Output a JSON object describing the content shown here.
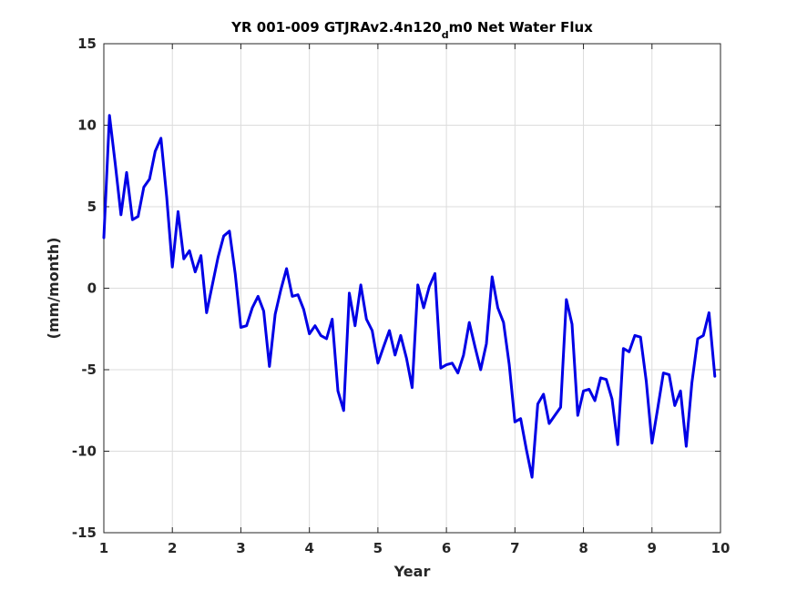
{
  "chart_data": {
    "type": "line",
    "title": {
      "main": "YR 001-009 GTJRAv2.4n120",
      "subscript": "d",
      "rest": "m0 Net Water Flux"
    },
    "xlabel": "Year",
    "ylabel": "(mm/month)",
    "xlim": [
      1,
      10
    ],
    "ylim": [
      -15,
      15
    ],
    "xticks": [
      1,
      2,
      3,
      4,
      5,
      6,
      7,
      8,
      9,
      10
    ],
    "yticks": [
      -15,
      -10,
      -5,
      0,
      5,
      10,
      15
    ],
    "grid": true,
    "line_color": "#0000e6",
    "x": [
      1.0,
      1.083,
      1.167,
      1.25,
      1.333,
      1.417,
      1.5,
      1.583,
      1.667,
      1.75,
      1.833,
      1.917,
      2.0,
      2.083,
      2.167,
      2.25,
      2.333,
      2.417,
      2.5,
      2.583,
      2.667,
      2.75,
      2.833,
      2.917,
      3.0,
      3.083,
      3.167,
      3.25,
      3.333,
      3.417,
      3.5,
      3.583,
      3.667,
      3.75,
      3.833,
      3.917,
      4.0,
      4.083,
      4.167,
      4.25,
      4.333,
      4.417,
      4.5,
      4.583,
      4.667,
      4.75,
      4.833,
      4.917,
      5.0,
      5.083,
      5.167,
      5.25,
      5.333,
      5.417,
      5.5,
      5.583,
      5.667,
      5.75,
      5.833,
      5.917,
      6.0,
      6.083,
      6.167,
      6.25,
      6.333,
      6.417,
      6.5,
      6.583,
      6.667,
      6.75,
      6.833,
      6.917,
      7.0,
      7.083,
      7.167,
      7.25,
      7.333,
      7.417,
      7.5,
      7.583,
      7.667,
      7.75,
      7.833,
      7.917,
      8.0,
      8.083,
      8.167,
      8.25,
      8.333,
      8.417,
      8.5,
      8.583,
      8.667,
      8.75,
      8.833,
      8.917,
      9.0,
      9.083,
      9.167,
      9.25,
      9.333,
      9.417,
      9.5,
      9.583,
      9.667,
      9.75,
      9.833,
      9.917
    ],
    "y": [
      3.1,
      10.6,
      7.6,
      4.5,
      7.1,
      4.2,
      4.4,
      6.2,
      6.7,
      8.4,
      9.2,
      5.6,
      1.3,
      4.7,
      1.8,
      2.3,
      1.0,
      2.0,
      -1.5,
      0.2,
      1.9,
      3.2,
      3.5,
      0.9,
      -2.4,
      -2.3,
      -1.2,
      -0.5,
      -1.4,
      -4.8,
      -1.6,
      -0.1,
      1.2,
      -0.5,
      -0.4,
      -1.3,
      -2.8,
      -2.3,
      -2.9,
      -3.1,
      -1.9,
      -6.3,
      -7.5,
      -0.3,
      -2.3,
      0.2,
      -1.9,
      -2.6,
      -4.6,
      -3.6,
      -2.6,
      -4.1,
      -2.9,
      -4.3,
      -6.1,
      0.2,
      -1.2,
      0.1,
      0.9,
      -4.9,
      -4.7,
      -4.6,
      -5.2,
      -4.1,
      -2.1,
      -3.6,
      -5.0,
      -3.4,
      0.7,
      -1.2,
      -2.1,
      -4.7,
      -8.2,
      -8.0,
      -9.9,
      -11.6,
      -7.1,
      -6.5,
      -8.3,
      -7.8,
      -7.3,
      -0.7,
      -2.2,
      -7.8,
      -6.3,
      -6.2,
      -6.9,
      -5.5,
      -5.6,
      -6.8,
      -9.6,
      -3.7,
      -3.9,
      -2.9,
      -3.0,
      -5.7,
      -9.5,
      -7.4,
      -5.2,
      -5.3,
      -7.2,
      -6.3,
      -9.7,
      -5.8,
      -3.1,
      -2.9,
      -1.5,
      -5.4
    ]
  }
}
